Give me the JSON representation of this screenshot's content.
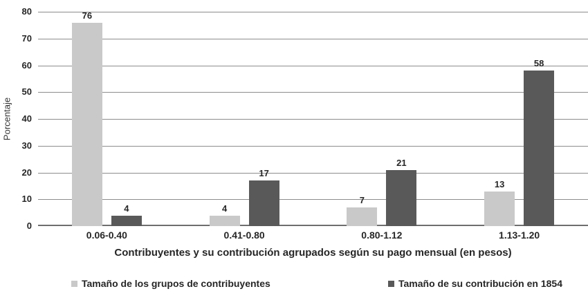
{
  "chart_data": {
    "type": "bar",
    "categories": [
      "0.06-0.40",
      "0.41-0.80",
      "0.80-1.12",
      "1.13-1.20"
    ],
    "series": [
      {
        "name": "Tamaño de los grupos de contribuyentes",
        "color": "#c9c9c9",
        "values": [
          76,
          4,
          7,
          13
        ]
      },
      {
        "name": "Tamaño de su contribución en 1854",
        "color": "#595959",
        "values": [
          4,
          17,
          21,
          58
        ]
      }
    ],
    "title": "",
    "xlabel": "Contribuyentes y su contribución agrupados según su pago mensual (en pesos)",
    "ylabel": "Porcentaje",
    "ylim": [
      0,
      80
    ],
    "yticks": [
      0,
      10,
      20,
      30,
      40,
      50,
      60,
      70,
      80
    ],
    "grid": true,
    "gridline_color": "#8c8c8c",
    "axis_line_color": "#6e6e6e",
    "text_color": "#262626",
    "legend_position": "bottom"
  }
}
